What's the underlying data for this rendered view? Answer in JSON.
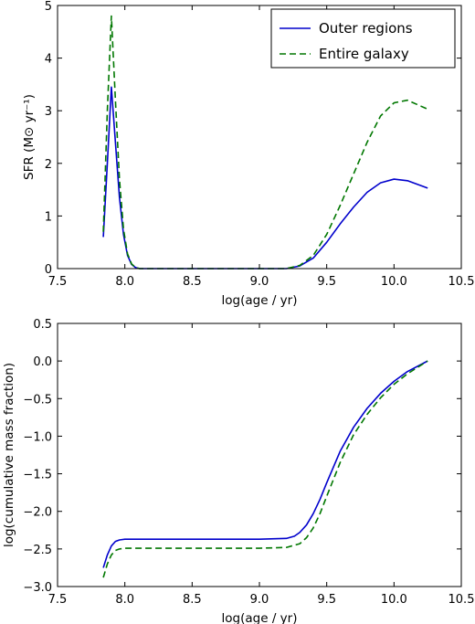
{
  "chart_data": [
    {
      "type": "line",
      "xlabel": "log(age / yr)",
      "ylabel": "SFR (M⊙ yr⁻¹)",
      "xlim": [
        7.5,
        10.5
      ],
      "ylim": [
        0,
        5
      ],
      "xticks": [
        "7.5",
        "8.0",
        "8.5",
        "9.0",
        "9.5",
        "10.0",
        "10.5"
      ],
      "yticks": [
        "0",
        "1",
        "2",
        "3",
        "4",
        "5"
      ],
      "grid": false,
      "legend_position": "top-right",
      "series": [
        {
          "name": "Outer regions",
          "color": "#0000cc",
          "style": "solid",
          "x": [
            7.84,
            7.87,
            7.9,
            7.93,
            7.96,
            7.99,
            8.02,
            8.05,
            8.08,
            8.11,
            8.15,
            8.3,
            9.0,
            9.2,
            9.3,
            9.4,
            9.5,
            9.6,
            9.7,
            9.8,
            9.9,
            10.0,
            10.1,
            10.25
          ],
          "y": [
            0.6,
            2.0,
            3.45,
            2.4,
            1.35,
            0.65,
            0.25,
            0.08,
            0.02,
            0.0,
            0.0,
            0.0,
            0.0,
            0.0,
            0.05,
            0.2,
            0.5,
            0.85,
            1.17,
            1.45,
            1.63,
            1.7,
            1.67,
            1.53
          ]
        },
        {
          "name": "Entire galaxy",
          "color": "#007700",
          "style": "dashed",
          "x": [
            7.84,
            7.87,
            7.9,
            7.93,
            7.96,
            7.99,
            8.02,
            8.05,
            8.08,
            8.11,
            8.15,
            8.3,
            9.0,
            9.2,
            9.3,
            9.4,
            9.5,
            9.6,
            9.7,
            9.8,
            9.9,
            10.0,
            10.1,
            10.25
          ],
          "y": [
            0.7,
            3.0,
            4.8,
            3.2,
            1.7,
            0.75,
            0.28,
            0.09,
            0.02,
            0.0,
            0.0,
            0.0,
            0.0,
            0.0,
            0.06,
            0.25,
            0.65,
            1.2,
            1.8,
            2.4,
            2.9,
            3.15,
            3.2,
            3.03
          ]
        }
      ]
    },
    {
      "type": "line",
      "xlabel": "log(age / yr)",
      "ylabel": "log(cumulative mass fraction)",
      "xlim": [
        7.5,
        10.5
      ],
      "ylim": [
        -3.0,
        0.5
      ],
      "xticks": [
        "7.5",
        "8.0",
        "8.5",
        "9.0",
        "9.5",
        "10.0",
        "10.5"
      ],
      "yticks": [
        "−3.0",
        "−2.5",
        "−2.0",
        "−1.5",
        "−1.0",
        "−0.5",
        "0.0",
        "0.5"
      ],
      "grid": false,
      "series": [
        {
          "color": "#0000cc",
          "style": "solid",
          "x": [
            7.84,
            7.87,
            7.9,
            7.93,
            7.96,
            8.0,
            8.1,
            8.5,
            9.0,
            9.2,
            9.26,
            9.3,
            9.35,
            9.4,
            9.45,
            9.5,
            9.6,
            9.7,
            9.8,
            9.9,
            10.0,
            10.1,
            10.25
          ],
          "y": [
            -2.75,
            -2.58,
            -2.46,
            -2.4,
            -2.38,
            -2.37,
            -2.37,
            -2.37,
            -2.37,
            -2.36,
            -2.33,
            -2.28,
            -2.18,
            -2.03,
            -1.84,
            -1.62,
            -1.2,
            -0.88,
            -0.63,
            -0.43,
            -0.27,
            -0.14,
            0.0
          ]
        },
        {
          "color": "#007700",
          "style": "dashed",
          "x": [
            7.84,
            7.87,
            7.9,
            7.93,
            7.96,
            8.0,
            8.1,
            8.5,
            9.0,
            9.2,
            9.3,
            9.35,
            9.4,
            9.45,
            9.5,
            9.6,
            9.7,
            9.8,
            9.9,
            10.0,
            10.1,
            10.25
          ],
          "y": [
            -2.88,
            -2.7,
            -2.58,
            -2.52,
            -2.5,
            -2.49,
            -2.49,
            -2.49,
            -2.49,
            -2.48,
            -2.43,
            -2.35,
            -2.22,
            -2.03,
            -1.8,
            -1.35,
            -0.98,
            -0.71,
            -0.49,
            -0.31,
            -0.17,
            0.0
          ]
        }
      ]
    }
  ]
}
